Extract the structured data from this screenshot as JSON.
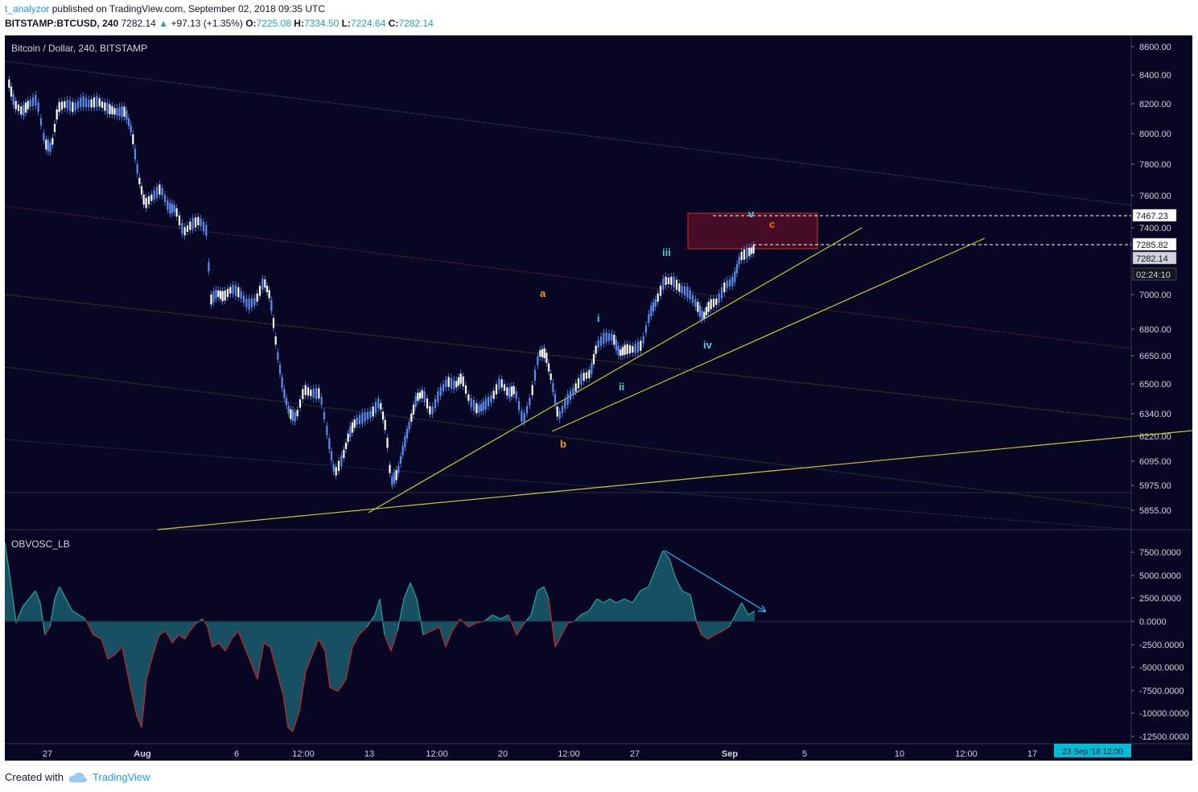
{
  "header": {
    "user": "t_analyzor",
    "published": "published on TradingView.com, September 02, 2018 09:35 UTC",
    "symbol": "BITSTAMP:BTCUSD, 240",
    "last": "7282.14",
    "change_arrow": "▲",
    "change": "+97.13 (+1.35%)",
    "o_label": "O:",
    "o": "7225.08",
    "h_label": "H:",
    "h": "7334.50",
    "l_label": "L:",
    "l": "7224.64",
    "c_label": "C:",
    "c": "7282.14"
  },
  "price_pane": {
    "title": "Bitcoin / Dollar, 240, BITSTAMP",
    "y_ticks": [
      "8600.00",
      "8400.00",
      "8200.00",
      "8000.00",
      "7800.00",
      "7600.00",
      "7400.00",
      "7000.00",
      "6800.00",
      "6650.00",
      "6500.00",
      "6340.00",
      "6220.00",
      "6095.00",
      "5975.00",
      "5855.00"
    ],
    "price_tags": [
      {
        "text": "7467.23",
        "style": "white"
      },
      {
        "text": "7285.82",
        "style": "white"
      },
      {
        "text": "7282.14",
        "style": "gray"
      },
      {
        "text": "02:24:10",
        "style": "dark"
      }
    ],
    "wave_labels": [
      {
        "text": "a",
        "color": "#ff9800"
      },
      {
        "text": "b",
        "color": "#ff9800"
      },
      {
        "text": "c",
        "color": "#ff6f00"
      },
      {
        "text": "i",
        "color": "#4dd0e1"
      },
      {
        "text": "ii",
        "color": "#4dd0e1"
      },
      {
        "text": "iii",
        "color": "#4dd0e1"
      },
      {
        "text": "iv",
        "color": "#4dd0e1"
      },
      {
        "text": "v",
        "color": "#4dd0e1"
      }
    ]
  },
  "indicator_pane": {
    "title": "OBVOSC_LB",
    "y_ticks": [
      "7500.0000",
      "5000.0000",
      "2500.0000",
      "0.0000",
      "-2500.0000",
      "-5000.0000",
      "-7500.0000",
      "-10000.0000",
      "-12500.0000"
    ]
  },
  "x_axis": {
    "ticks": [
      "27",
      "Aug",
      "6",
      "12:00",
      "13",
      "12:00",
      "20",
      "12:00",
      "27",
      "Sep",
      "5",
      "10",
      "12:00",
      "17"
    ],
    "cursor_label": "23 Sep '18  12:00"
  },
  "colors": {
    "background": "#070623",
    "candle": "#5b8def",
    "trendline": "#c8c83a",
    "box": "#d32f2f",
    "osc_fill": "#1b5e6e",
    "osc_up": "#26a69a",
    "osc_down": "#c62828",
    "cyan_arrow": "#29b6f6"
  },
  "footer": {
    "created_with": "Created with",
    "brand": "TradingView"
  }
}
